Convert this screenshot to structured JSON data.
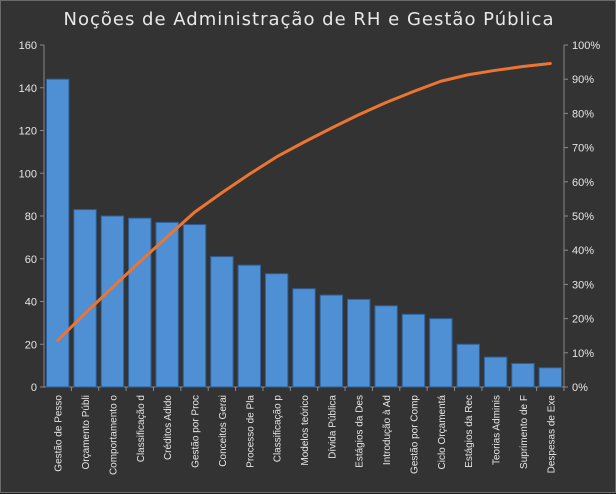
{
  "chart_data": {
    "type": "bar",
    "title": "Noções de Administração  de RH e Gestão Pública",
    "categories": [
      "Gestão de Pesso",
      "Orçamento Públi",
      "Comportamento o",
      "Classificação d",
      "Créditos Adido",
      "Gestão por Proc",
      "Conceitos Gerai",
      "Processo de Pla",
      "Classificação p",
      "Modelos teórico",
      "Dívida Pública",
      "Estágios da Des",
      "Introdução à Ad",
      "Gestão por Comp",
      "Ciclo Orçamentá",
      "Estágios da Rec",
      "Teorias Adminis",
      "Suprimento de F",
      "Despesas de Exe"
    ],
    "series": [
      {
        "type": "bar",
        "values": [
          144,
          83,
          80,
          79,
          77,
          76,
          61,
          57,
          53,
          46,
          43,
          41,
          38,
          34,
          32,
          20,
          14,
          11,
          9
        ]
      },
      {
        "type": "line",
        "axis": "right",
        "values": [
          13.6,
          21.5,
          29.1,
          36.6,
          43.9,
          51.1,
          56.8,
          62.2,
          67.3,
          71.6,
          75.7,
          79.6,
          83.2,
          86.4,
          89.4,
          91.3,
          92.6,
          93.7,
          94.6
        ]
      }
    ],
    "ylim": [
      0,
      160
    ],
    "yticks": [
      0,
      20,
      40,
      60,
      80,
      100,
      120,
      140,
      160
    ],
    "y2lim": [
      0,
      100
    ],
    "y2ticks": [
      "0%",
      "10%",
      "20%",
      "30%",
      "40%",
      "50%",
      "60%",
      "70%",
      "80%",
      "90%",
      "100%"
    ],
    "colors": {
      "bar": "#4f8fd3",
      "bar_edge": "#2e5f9a",
      "line": "#ec7532",
      "text": "#e6e6e6",
      "axis": "#8a8a8a",
      "background": "#333333"
    }
  }
}
